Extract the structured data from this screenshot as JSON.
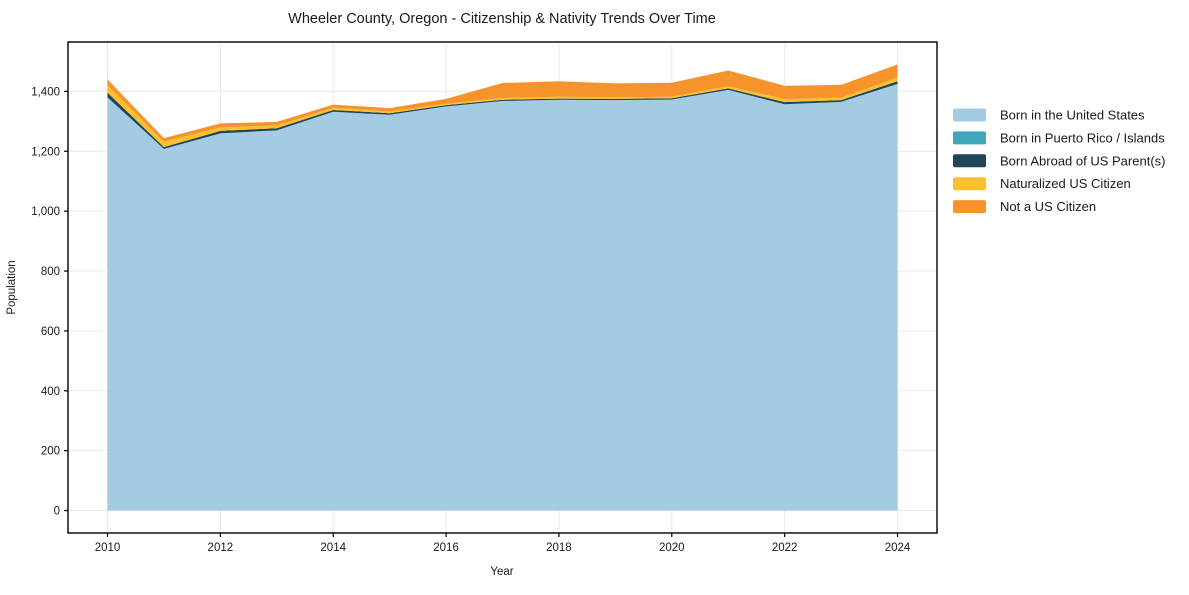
{
  "chart_data": {
    "type": "area",
    "stacked": true,
    "title": "Wheeler County, Oregon - Citizenship & Nativity Trends Over Time",
    "xlabel": "Year",
    "ylabel": "Population",
    "x": [
      2010,
      2011,
      2012,
      2013,
      2014,
      2015,
      2016,
      2017,
      2018,
      2019,
      2020,
      2021,
      2022,
      2023,
      2024
    ],
    "series": [
      {
        "name": "Born in the United States",
        "color": "#a3cce3",
        "values": [
          1380,
          1208,
          1260,
          1270,
          1332,
          1322,
          1350,
          1368,
          1372,
          1371,
          1373,
          1405,
          1357,
          1365,
          1425
        ]
      },
      {
        "name": "Born in Puerto Rico / Islands",
        "color": "#3ea8bc",
        "values": [
          0,
          0,
          0,
          0,
          0,
          0,
          0,
          0,
          0,
          0,
          0,
          0,
          0,
          0,
          0
        ]
      },
      {
        "name": "Born Abroad of US Parent(s)",
        "color": "#1f4557",
        "values": [
          16,
          6,
          8,
          7,
          6,
          5,
          4,
          4,
          4,
          4,
          4,
          5,
          7,
          6,
          9
        ]
      },
      {
        "name": "Naturalized US Citizen",
        "color": "#fcbf2e",
        "values": [
          24,
          18,
          12,
          9,
          8,
          6,
          5,
          6,
          6,
          5,
          5,
          7,
          10,
          8,
          12
        ]
      },
      {
        "name": "Not a US Citizen",
        "color": "#f6932b",
        "values": [
          20,
          12,
          13,
          12,
          10,
          11,
          16,
          50,
          52,
          47,
          47,
          53,
          45,
          43,
          44
        ]
      }
    ],
    "totals": [
      1440,
      1244,
      1293,
      1298,
      1356,
      1344,
      1375,
      1428,
      1434,
      1427,
      1429,
      1470,
      1419,
      1422,
      1490
    ],
    "xticks": [
      2010,
      2012,
      2014,
      2016,
      2018,
      2020,
      2022,
      2024
    ],
    "xtick_labels": [
      "2010",
      "2012",
      "2014",
      "2016",
      "2018",
      "2020",
      "2022",
      "2024"
    ],
    "yticks": [
      0,
      200,
      400,
      600,
      800,
      1000,
      1200,
      1400
    ],
    "ytick_labels": [
      "0",
      "200",
      "400",
      "600",
      "800",
      "1,000",
      "1,200",
      "1,400"
    ],
    "xlim": [
      2009.3,
      2024.7
    ],
    "ylim": [
      -75,
      1565
    ],
    "grid": true,
    "grid_color": "#e9e9e9",
    "axis_color": "#000000",
    "legend_position": "right"
  }
}
